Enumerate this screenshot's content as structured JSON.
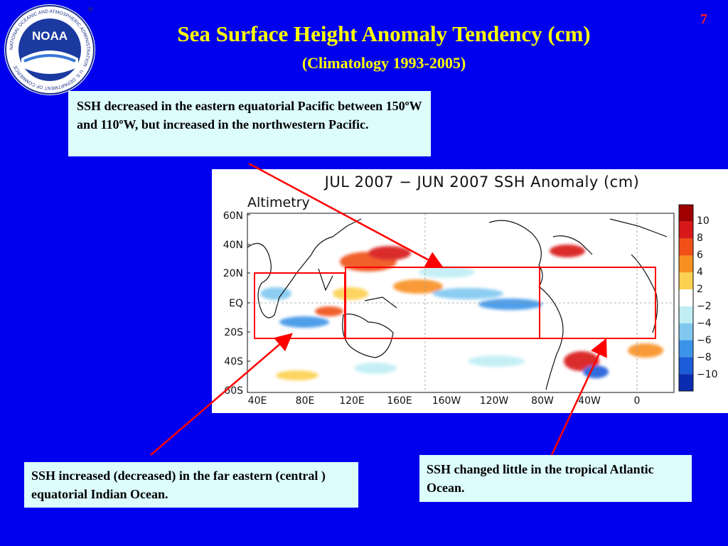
{
  "slide": {
    "number": "7",
    "title": "Sea Surface Height Anomaly Tendency (cm)",
    "subtitle": "(Climatology 1993-2005)"
  },
  "logo": {
    "center_text": "NOAA",
    "ring_text": "NATIONAL OCEANIC AND ATMOSPHERIC ADMINISTRATION · U.S. DEPARTMENT OF COMMERCE",
    "mark": "®"
  },
  "notes": {
    "top": "SSH decreased in the eastern equatorial Pacific between 150ºW and 110ºW, but increased in the northwestern Pacific.",
    "left": "SSH increased (decreased) in the far eastern (central ) equatorial Indian Ocean.",
    "right": "SSH changed little in the tropical Atlantic Ocean."
  },
  "figure": {
    "title": "JUL 2007 − JUN 2007 SSH Anomaly (cm)",
    "source": "Altimetry",
    "lat_labels": [
      "60N",
      "40N",
      "20N",
      "EQ",
      "20S",
      "40S",
      "60S"
    ],
    "lon_labels": [
      "40E",
      "80E",
      "120E",
      "160E",
      "160W",
      "120W",
      "80W",
      "40W",
      "0"
    ],
    "colorbar": {
      "labels": [
        "10",
        "8",
        "6",
        "4",
        "2",
        "−2",
        "−4",
        "−6",
        "−8",
        "−10"
      ],
      "colors": [
        "#a00000",
        "#d81818",
        "#f05018",
        "#f89020",
        "#fcd050",
        "#ffffff",
        "#c0eef4",
        "#80c8f0",
        "#3c94e8",
        "#1c5cd8",
        "#0a2cb0"
      ]
    }
  },
  "colors": {
    "background": "#0000ee",
    "title": "#ffff00",
    "note_bg": "#ddfcfc",
    "arrow": "#ff0000",
    "slide_number": "#ff2020"
  }
}
